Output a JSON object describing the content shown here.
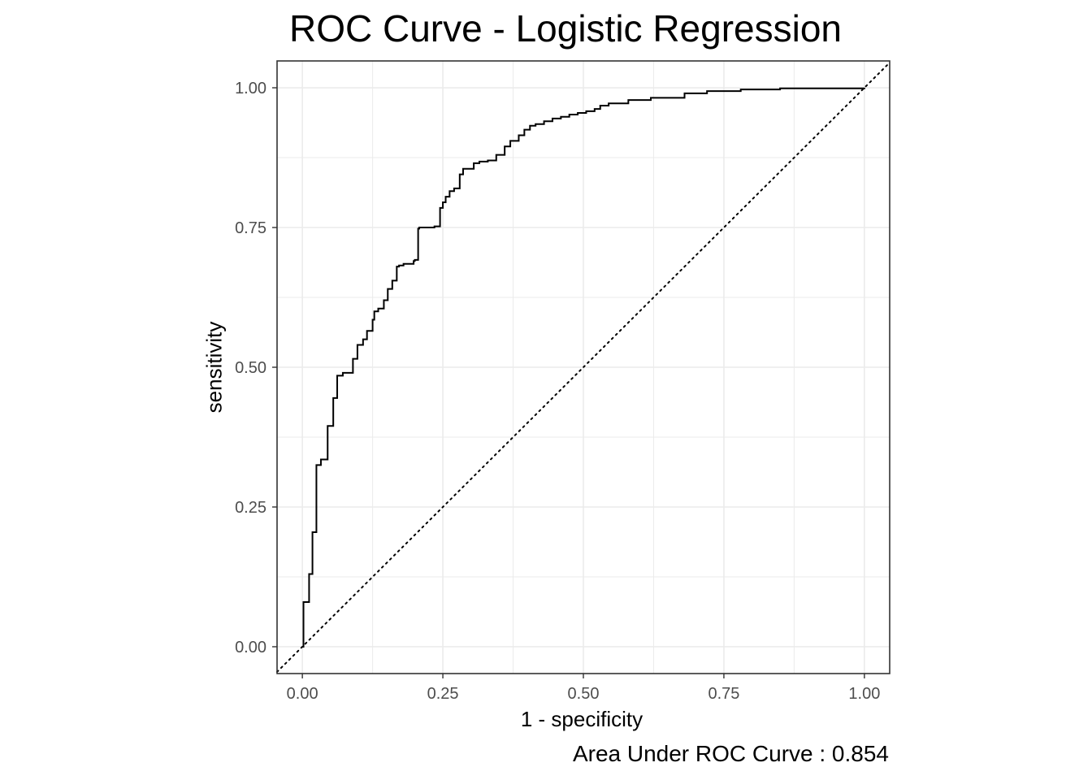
{
  "chart_data": {
    "type": "line",
    "title": "ROC Curve - Logistic Regression",
    "xlabel": "1 - specificity",
    "ylabel": "sensitivity",
    "caption": "Area Under ROC Curve : 0.854",
    "xlim": [
      -0.045,
      1.045
    ],
    "ylim": [
      -0.048,
      1.048
    ],
    "x_ticks": [
      "0.00",
      "0.25",
      "0.50",
      "0.75",
      "1.00"
    ],
    "y_ticks": [
      "0.00",
      "0.25",
      "0.50",
      "0.75",
      "1.00"
    ],
    "grid": true,
    "step": true,
    "colors": {
      "curve": "#000000",
      "grid": "#ebebeb",
      "panel_border": "#333333",
      "tick": "#4d4d4d"
    },
    "series": [
      {
        "style": "step",
        "x": [
          0.0,
          0.002,
          0.012,
          0.018,
          0.025,
          0.033,
          0.045,
          0.055,
          0.062,
          0.072,
          0.09,
          0.098,
          0.108,
          0.115,
          0.125,
          0.128,
          0.135,
          0.145,
          0.152,
          0.16,
          0.168,
          0.172,
          0.18,
          0.186,
          0.198,
          0.2,
          0.206,
          0.208,
          0.215,
          0.235,
          0.238,
          0.245,
          0.25,
          0.255,
          0.262,
          0.27,
          0.28,
          0.286,
          0.292,
          0.305,
          0.315,
          0.33,
          0.345,
          0.36,
          0.37,
          0.385,
          0.395,
          0.405,
          0.415,
          0.43,
          0.445,
          0.46,
          0.475,
          0.49,
          0.505,
          0.52,
          0.53,
          0.545,
          0.58,
          0.62,
          0.68,
          0.72,
          0.78,
          0.85,
          1.0
        ],
        "y": [
          0.0,
          0.08,
          0.13,
          0.205,
          0.325,
          0.335,
          0.395,
          0.445,
          0.485,
          0.49,
          0.515,
          0.54,
          0.55,
          0.565,
          0.585,
          0.6,
          0.605,
          0.62,
          0.64,
          0.655,
          0.68,
          0.682,
          0.685,
          0.685,
          0.69,
          0.692,
          0.748,
          0.75,
          0.75,
          0.752,
          0.752,
          0.785,
          0.795,
          0.805,
          0.815,
          0.82,
          0.845,
          0.855,
          0.855,
          0.865,
          0.868,
          0.87,
          0.88,
          0.895,
          0.905,
          0.915,
          0.925,
          0.932,
          0.935,
          0.94,
          0.945,
          0.948,
          0.952,
          0.955,
          0.958,
          0.962,
          0.968,
          0.972,
          0.978,
          0.982,
          0.99,
          0.994,
          0.997,
          0.999,
          1.0
        ]
      },
      {
        "style": "dotted",
        "x": [
          -0.045,
          1.045
        ],
        "y": [
          -0.045,
          1.045
        ]
      }
    ]
  }
}
